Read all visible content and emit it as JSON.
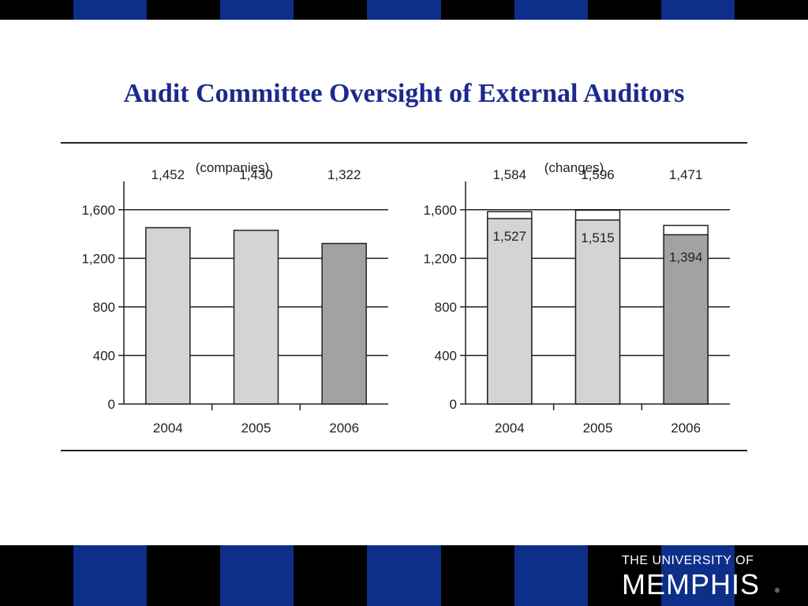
{
  "slide": {
    "title": "Audit Committee Oversight of External Auditors"
  },
  "colors": {
    "stripe_blue": "#0d2f8a",
    "stripe_black": "#000000",
    "title": "#1a2a8c",
    "bar_light": "#d4d4d4",
    "bar_dark": "#a2a2a2"
  },
  "logo": {
    "line1": "THE UNIVERSITY OF",
    "line2": "MEMPHIS",
    "mark": "®"
  },
  "chart_data": [
    {
      "type": "bar",
      "subtitle": "(companies)",
      "categories": [
        "2004",
        "2005",
        "2006"
      ],
      "ylim": [
        0,
        1800
      ],
      "yticks": [
        0,
        400,
        800,
        1200,
        1600
      ],
      "ytick_labels": [
        "0",
        "400",
        "800",
        "1,200",
        "1,600"
      ],
      "grid": true,
      "legend": "none",
      "series": [
        {
          "values": [
            1452,
            1430,
            1322
          ],
          "value_labels": [
            "1,452",
            "1,430",
            "1,322"
          ],
          "colors": [
            "#d4d4d4",
            "#d4d4d4",
            "#a2a2a2"
          ]
        }
      ]
    },
    {
      "type": "bar",
      "subtitle": "(changes)",
      "categories": [
        "2004",
        "2005",
        "2006"
      ],
      "ylim": [
        0,
        1800
      ],
      "yticks": [
        0,
        400,
        800,
        1200,
        1600
      ],
      "ytick_labels": [
        "0",
        "400",
        "800",
        "1,200",
        "1,600"
      ],
      "grid": true,
      "legend": "none",
      "series": [
        {
          "values": [
            1584,
            1596,
            1471
          ],
          "value_labels": [
            "1,584",
            "1,596",
            "1,471"
          ],
          "colors": [
            "#ffffff",
            "#ffffff",
            "#ffffff"
          ]
        },
        {
          "values": [
            1527,
            1515,
            1394
          ],
          "value_labels": [
            "1,527",
            "1,515",
            "1,394"
          ],
          "colors": [
            "#d4d4d4",
            "#d4d4d4",
            "#a2a2a2"
          ]
        }
      ]
    }
  ]
}
